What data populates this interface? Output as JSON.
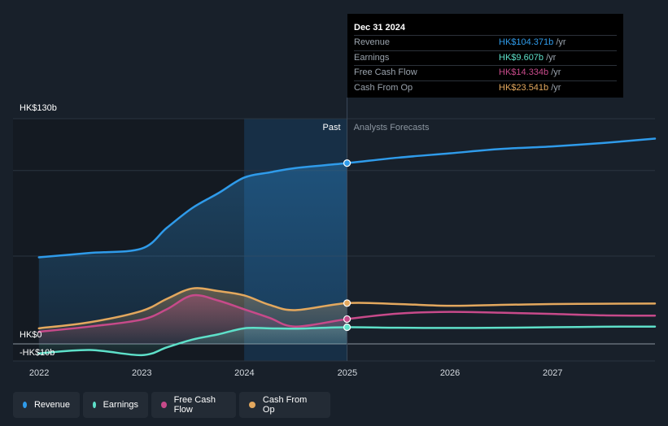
{
  "chart_data": {
    "type": "line",
    "x_domain": [
      "2021-09-30",
      "2027-12-31"
    ],
    "ylim": [
      -15,
      130
    ],
    "y_axis_labels": [
      {
        "label": "HK$130b",
        "value": 130
      },
      {
        "label": "HK$0",
        "value": 0
      },
      {
        "label": "-HK$10b",
        "value": -10
      }
    ],
    "x_ticks": [
      "2022",
      "2023",
      "2024",
      "2025",
      "2026",
      "2027"
    ],
    "past_label": "Past",
    "forecast_label": "Analysts Forecasts",
    "divider_date": "2024-12-31",
    "highlight_start": "2023-12-31",
    "grid": true,
    "series": [
      {
        "name": "Revenue",
        "color": "#2f9bea",
        "points": [
          [
            "2021-12-31",
            50.0
          ],
          [
            "2022-06-30",
            52.5
          ],
          [
            "2022-12-31",
            55.0
          ],
          [
            "2023-03-31",
            67.0
          ],
          [
            "2023-06-30",
            78.5
          ],
          [
            "2023-09-30",
            87.0
          ],
          [
            "2023-12-31",
            96.0
          ],
          [
            "2024-03-31",
            99.0
          ],
          [
            "2024-06-30",
            101.5
          ],
          [
            "2024-12-31",
            104.371
          ],
          [
            "2025-06-30",
            107.5
          ],
          [
            "2025-12-31",
            110.0
          ],
          [
            "2026-06-30",
            112.5
          ],
          [
            "2026-12-31",
            114.0
          ],
          [
            "2027-06-30",
            116.0
          ],
          [
            "2027-12-31",
            118.5
          ]
        ]
      },
      {
        "name": "Earnings",
        "color": "#5ee0c9",
        "points": [
          [
            "2021-12-31",
            -5.5
          ],
          [
            "2022-06-30",
            -3.5
          ],
          [
            "2022-12-31",
            -6.5
          ],
          [
            "2023-03-31",
            -2.0
          ],
          [
            "2023-06-30",
            2.5
          ],
          [
            "2023-09-30",
            5.5
          ],
          [
            "2023-12-31",
            9.0
          ],
          [
            "2024-03-31",
            9.0
          ],
          [
            "2024-06-30",
            8.8
          ],
          [
            "2024-12-31",
            9.607
          ],
          [
            "2025-06-30",
            9.3
          ],
          [
            "2025-12-31",
            9.2
          ],
          [
            "2026-06-30",
            9.3
          ],
          [
            "2026-12-31",
            9.6
          ],
          [
            "2027-06-30",
            9.9
          ],
          [
            "2027-12-31",
            10.0
          ]
        ]
      },
      {
        "name": "Free Cash Flow",
        "color": "#c74a8a",
        "points": [
          [
            "2021-12-31",
            7.0
          ],
          [
            "2022-06-30",
            10.0
          ],
          [
            "2022-12-31",
            14.0
          ],
          [
            "2023-03-31",
            20.0
          ],
          [
            "2023-06-30",
            28.0
          ],
          [
            "2023-09-30",
            25.0
          ],
          [
            "2023-12-31",
            20.0
          ],
          [
            "2024-03-31",
            15.0
          ],
          [
            "2024-06-30",
            10.0
          ],
          [
            "2024-12-31",
            14.334
          ],
          [
            "2025-06-30",
            17.5
          ],
          [
            "2025-12-31",
            18.5
          ],
          [
            "2026-06-30",
            18.0
          ],
          [
            "2026-12-31",
            17.3
          ],
          [
            "2027-06-30",
            16.5
          ],
          [
            "2027-12-31",
            16.3
          ]
        ]
      },
      {
        "name": "Cash From Op",
        "color": "#e3a85e",
        "points": [
          [
            "2021-12-31",
            9.0
          ],
          [
            "2022-06-30",
            12.5
          ],
          [
            "2022-12-31",
            19.0
          ],
          [
            "2023-03-31",
            26.0
          ],
          [
            "2023-06-30",
            32.0
          ],
          [
            "2023-09-30",
            30.5
          ],
          [
            "2023-12-31",
            28.0
          ],
          [
            "2024-03-31",
            22.5
          ],
          [
            "2024-06-30",
            19.5
          ],
          [
            "2024-12-31",
            23.541
          ],
          [
            "2025-06-30",
            23.0
          ],
          [
            "2025-12-31",
            22.0
          ],
          [
            "2026-06-30",
            22.5
          ],
          [
            "2026-12-31",
            23.0
          ],
          [
            "2027-06-30",
            23.2
          ],
          [
            "2027-12-31",
            23.3
          ]
        ]
      }
    ]
  },
  "tooltip": {
    "date": "Dec 31 2024",
    "rows": [
      {
        "name": "Revenue",
        "value": "HK$104.371b",
        "unit": "/yr",
        "color": "#2f9bea"
      },
      {
        "name": "Earnings",
        "value": "HK$9.607b",
        "unit": "/yr",
        "color": "#5ee0c9"
      },
      {
        "name": "Free Cash Flow",
        "value": "HK$14.334b",
        "unit": "/yr",
        "color": "#c74a8a"
      },
      {
        "name": "Cash From Op",
        "value": "HK$23.541b",
        "unit": "/yr",
        "color": "#e3a85e"
      }
    ]
  },
  "legend": [
    {
      "label": "Revenue",
      "color": "#2f9bea"
    },
    {
      "label": "Earnings",
      "color": "#5ee0c9"
    },
    {
      "label": "Free Cash Flow",
      "color": "#c74a8a"
    },
    {
      "label": "Cash From Op",
      "color": "#e3a85e"
    }
  ]
}
